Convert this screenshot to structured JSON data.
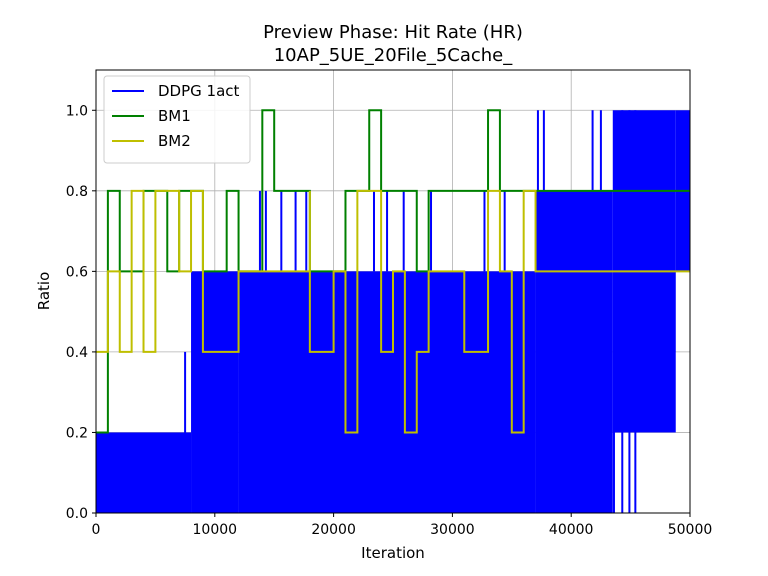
{
  "chart_data": {
    "type": "line",
    "title": "Preview Phase: Hit Rate (HR)",
    "subtitle": "10AP_5UE_20File_5Cache_",
    "xlabel": "Iteration",
    "ylabel": "Ratio",
    "xlim": [
      0,
      50000
    ],
    "ylim": [
      0,
      1.1
    ],
    "x_ticks": [
      0,
      10000,
      20000,
      30000,
      40000,
      50000
    ],
    "x_tick_labels": [
      "0",
      "10000",
      "20000",
      "30000",
      "40000",
      "50000"
    ],
    "y_ticks": [
      0.0,
      0.2,
      0.4,
      0.6,
      0.8,
      1.0
    ],
    "y_tick_labels": [
      "0.0",
      "0.2",
      "0.4",
      "0.6",
      "0.8",
      "1.0"
    ],
    "grid": true,
    "legend_position": "top-left",
    "series": [
      {
        "name": "DDPG 1act",
        "color": "#0000ff",
        "style": "dense-oscillation",
        "bands": [
          {
            "x_start": 0,
            "x_end": 8000,
            "low": 0.0,
            "high": 0.2
          },
          {
            "x_start": 8000,
            "x_end": 12000,
            "low": 0.0,
            "high": 0.6
          },
          {
            "x_start": 12000,
            "x_end": 37000,
            "low": 0.0,
            "high": 0.6
          },
          {
            "x_start": 37000,
            "x_end": 43500,
            "low": 0.0,
            "high": 0.8
          },
          {
            "x_start": 43500,
            "x_end": 48800,
            "low": 0.2,
            "high": 1.0
          },
          {
            "x_start": 48800,
            "x_end": 50000,
            "low": 0.6,
            "high": 1.0
          }
        ],
        "spikes": [
          {
            "x": 1800,
            "low": 0.0,
            "high": 0.2
          },
          {
            "x": 7500,
            "low": 0.0,
            "high": 0.4
          },
          {
            "x": 9400,
            "low": 0.4,
            "high": 0.6
          },
          {
            "x": 13800,
            "low": 0.6,
            "high": 0.8
          },
          {
            "x": 14300,
            "low": 0.6,
            "high": 0.8
          },
          {
            "x": 15600,
            "low": 0.6,
            "high": 0.8
          },
          {
            "x": 16800,
            "low": 0.6,
            "high": 0.8
          },
          {
            "x": 17700,
            "low": 0.6,
            "high": 0.8
          },
          {
            "x": 23400,
            "low": 0.6,
            "high": 0.8
          },
          {
            "x": 24500,
            "low": 0.6,
            "high": 0.8
          },
          {
            "x": 25900,
            "low": 0.6,
            "high": 0.8
          },
          {
            "x": 28200,
            "low": 0.6,
            "high": 0.8
          },
          {
            "x": 32700,
            "low": 0.6,
            "high": 0.8
          },
          {
            "x": 34400,
            "low": 0.6,
            "high": 0.8
          },
          {
            "x": 37200,
            "low": 0.8,
            "high": 1.0
          },
          {
            "x": 37700,
            "low": 0.8,
            "high": 1.0
          },
          {
            "x": 41800,
            "low": 0.8,
            "high": 1.0
          },
          {
            "x": 42500,
            "low": 0.8,
            "high": 1.0
          },
          {
            "x": 43600,
            "low": 0.0,
            "high": 0.8
          },
          {
            "x": 44300,
            "low": 0.0,
            "high": 1.0
          },
          {
            "x": 44900,
            "low": 0.0,
            "high": 1.0
          },
          {
            "x": 45400,
            "low": 0.0,
            "high": 1.0
          },
          {
            "x": 48700,
            "low": 0.4,
            "high": 0.8
          },
          {
            "x": 49600,
            "low": 0.6,
            "high": 0.8
          }
        ]
      },
      {
        "name": "BM1",
        "color": "#008000",
        "style": "step",
        "points": [
          [
            0,
            0.2
          ],
          [
            1000,
            0.2
          ],
          [
            1000,
            0.8
          ],
          [
            2000,
            0.8
          ],
          [
            2000,
            0.6
          ],
          [
            4000,
            0.6
          ],
          [
            4000,
            0.8
          ],
          [
            6000,
            0.8
          ],
          [
            6000,
            0.6
          ],
          [
            7000,
            0.6
          ],
          [
            7000,
            0.8
          ],
          [
            9000,
            0.8
          ],
          [
            9000,
            0.6
          ],
          [
            11000,
            0.6
          ],
          [
            11000,
            0.8
          ],
          [
            12000,
            0.8
          ],
          [
            12000,
            0.6
          ],
          [
            14000,
            0.6
          ],
          [
            14000,
            1.0
          ],
          [
            15000,
            1.0
          ],
          [
            15000,
            0.8
          ],
          [
            18000,
            0.8
          ],
          [
            18000,
            0.6
          ],
          [
            21000,
            0.6
          ],
          [
            21000,
            0.8
          ],
          [
            23000,
            0.8
          ],
          [
            23000,
            1.0
          ],
          [
            24000,
            1.0
          ],
          [
            24000,
            0.8
          ],
          [
            27000,
            0.8
          ],
          [
            27000,
            0.6
          ],
          [
            28000,
            0.6
          ],
          [
            28000,
            0.8
          ],
          [
            33000,
            0.8
          ],
          [
            33000,
            1.0
          ],
          [
            34000,
            1.0
          ],
          [
            34000,
            0.8
          ],
          [
            50000,
            0.8
          ]
        ]
      },
      {
        "name": "BM2",
        "color": "#bfbf00",
        "style": "step",
        "points": [
          [
            0,
            0.4
          ],
          [
            1000,
            0.4
          ],
          [
            1000,
            0.6
          ],
          [
            2000,
            0.6
          ],
          [
            2000,
            0.4
          ],
          [
            3000,
            0.4
          ],
          [
            3000,
            0.8
          ],
          [
            4000,
            0.8
          ],
          [
            4000,
            0.4
          ],
          [
            5000,
            0.4
          ],
          [
            5000,
            0.8
          ],
          [
            7000,
            0.8
          ],
          [
            7000,
            0.6
          ],
          [
            8000,
            0.6
          ],
          [
            8000,
            0.8
          ],
          [
            9000,
            0.8
          ],
          [
            9000,
            0.4
          ],
          [
            12000,
            0.4
          ],
          [
            12000,
            0.6
          ],
          [
            18000,
            0.6
          ],
          [
            18000,
            0.8
          ],
          [
            18000,
            0.4
          ],
          [
            20000,
            0.4
          ],
          [
            20000,
            0.6
          ],
          [
            21000,
            0.6
          ],
          [
            21000,
            0.2
          ],
          [
            22000,
            0.2
          ],
          [
            22000,
            0.8
          ],
          [
            24000,
            0.8
          ],
          [
            24000,
            0.4
          ],
          [
            25000,
            0.4
          ],
          [
            25000,
            0.6
          ],
          [
            26000,
            0.6
          ],
          [
            26000,
            0.2
          ],
          [
            27000,
            0.2
          ],
          [
            27000,
            0.4
          ],
          [
            28000,
            0.4
          ],
          [
            28000,
            0.6
          ],
          [
            31000,
            0.6
          ],
          [
            31000,
            0.4
          ],
          [
            33000,
            0.4
          ],
          [
            33000,
            0.8
          ],
          [
            34000,
            0.8
          ],
          [
            34000,
            0.6
          ],
          [
            35000,
            0.6
          ],
          [
            35000,
            0.2
          ],
          [
            36000,
            0.2
          ],
          [
            36000,
            0.8
          ],
          [
            37000,
            0.8
          ],
          [
            37000,
            0.6
          ],
          [
            50000,
            0.6
          ]
        ]
      }
    ]
  }
}
